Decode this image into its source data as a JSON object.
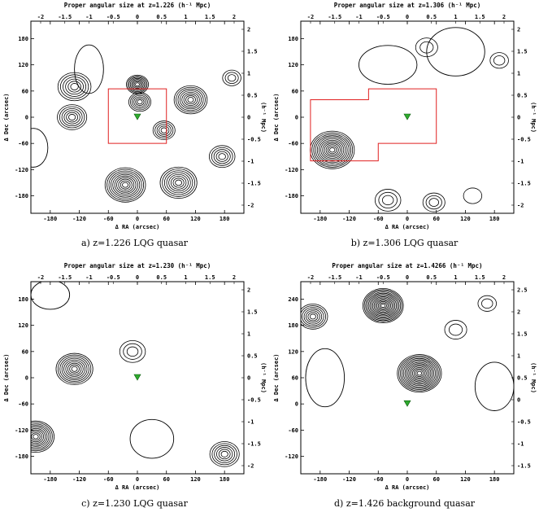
{
  "panels": [
    {
      "id": "a",
      "title": "Proper angular size at z=1.226 (h⁻¹ Mpc)",
      "caption": "a)   z=1.226 LQG quasar",
      "xlabel": "Δ RA (arcsec)",
      "ylabel": "Δ Dec (arcsec)",
      "rlabel": "(h⁻¹ Mpc)",
      "xticks": [
        -180,
        -120,
        -60,
        0,
        60,
        120,
        180
      ],
      "yticks": [
        180,
        120,
        60,
        0,
        -60,
        -120,
        -180
      ],
      "top_ticks": [
        "-2",
        "-1.5",
        "-1",
        "-0.5",
        "0",
        "0.5",
        "1",
        "1.5",
        "2"
      ],
      "right_ticks": [
        "2",
        "1.5",
        "1",
        "0.5",
        "0",
        "-0.5",
        "-1",
        "-1.5",
        "-2"
      ],
      "xlim": [
        -220,
        220
      ],
      "ylim": [
        -220,
        220
      ],
      "peaks": [
        {
          "x": -130,
          "y": 70,
          "s": 18,
          "n": 6
        },
        {
          "x": -135,
          "y": 0,
          "s": 16,
          "n": 6
        },
        {
          "x": 0,
          "y": 75,
          "s": 12,
          "n": 8
        },
        {
          "x": 5,
          "y": 35,
          "s": 12,
          "n": 6
        },
        {
          "x": 110,
          "y": 40,
          "s": 18,
          "n": 8
        },
        {
          "x": 55,
          "y": -30,
          "s": 12,
          "n": 5
        },
        {
          "x": -25,
          "y": -155,
          "s": 22,
          "n": 10
        },
        {
          "x": 85,
          "y": -150,
          "s": 20,
          "n": 8
        },
        {
          "x": 175,
          "y": -90,
          "s": 14,
          "n": 5
        },
        {
          "x": 195,
          "y": 90,
          "s": 10,
          "n": 3
        }
      ],
      "blobs": [
        {
          "x": -215,
          "y": -70,
          "rx": 30,
          "ry": 40
        },
        {
          "x": -100,
          "y": 110,
          "rx": 30,
          "ry": 50
        }
      ],
      "box": [
        [
          -60,
          65
        ],
        [
          60,
          65
        ],
        [
          60,
          -60
        ],
        [
          -60,
          -60
        ]
      ],
      "marker": {
        "x": 0,
        "y": 0
      }
    },
    {
      "id": "b",
      "title": "Proper angular size at z=1.306 (h⁻¹ Mpc)",
      "caption": "b)   z=1.306 LQG quasar",
      "xlabel": "Δ RA (arcsec)",
      "ylabel": "Δ Dec (arcsec)",
      "rlabel": "(h⁻¹ Mpc)",
      "xticks": [
        -180,
        -120,
        -60,
        0,
        60,
        120,
        180
      ],
      "yticks": [
        180,
        120,
        60,
        0,
        -60,
        -120,
        -180
      ],
      "top_ticks": [
        "-2",
        "-1.5",
        "-1",
        "-0.5",
        "0",
        "0.5",
        "1",
        "1.5",
        "2"
      ],
      "right_ticks": [
        "2",
        "1.5",
        "1",
        "0.5",
        "0",
        "-0.5",
        "-1",
        "-1.5",
        "-2"
      ],
      "xlim": [
        -220,
        220
      ],
      "ylim": [
        -220,
        220
      ],
      "peaks": [
        {
          "x": -155,
          "y": -75,
          "s": 24,
          "n": 12
        },
        {
          "x": 40,
          "y": 160,
          "s": 12,
          "n": 2
        },
        {
          "x": 190,
          "y": 130,
          "s": 10,
          "n": 2
        },
        {
          "x": 55,
          "y": -195,
          "s": 12,
          "n": 3
        },
        {
          "x": 135,
          "y": -180,
          "s": 10,
          "n": 1
        },
        {
          "x": -40,
          "y": -190,
          "s": 14,
          "n": 3
        }
      ],
      "blobs": [
        {
          "x": -40,
          "y": 120,
          "rx": 60,
          "ry": 40
        },
        {
          "x": 100,
          "y": 150,
          "rx": 60,
          "ry": 50
        }
      ],
      "box": [
        [
          -200,
          40
        ],
        [
          -80,
          40
        ],
        [
          -80,
          65
        ],
        [
          60,
          65
        ],
        [
          60,
          -60
        ],
        [
          -60,
          -60
        ],
        [
          -60,
          -100
        ],
        [
          -200,
          -100
        ]
      ],
      "marker": {
        "x": 0,
        "y": 0
      }
    },
    {
      "id": "c",
      "title": "Proper angular size at z=1.230 (h⁻¹ Mpc)",
      "caption": "c)   z=1.230 LQG quasar",
      "xlabel": "Δ RA (arcsec)",
      "ylabel": "Δ Dec (arcsec)",
      "rlabel": "(h⁻¹ Mpc)",
      "xticks": [
        -180,
        -120,
        -60,
        0,
        60,
        120,
        180
      ],
      "yticks": [
        180,
        120,
        60,
        0,
        -60,
        -120,
        -180
      ],
      "top_ticks": [
        "-2",
        "-1.5",
        "-1",
        "-0.5",
        "0",
        "0.5",
        "1",
        "1.5",
        "2"
      ],
      "right_ticks": [
        "2",
        "1.5",
        "1",
        "0.5",
        "0",
        "-0.5",
        "-1",
        "-1.5",
        "-2"
      ],
      "xlim": [
        -220,
        220
      ],
      "ylim": [
        -220,
        220
      ],
      "peaks": [
        {
          "x": -130,
          "y": 20,
          "s": 20,
          "n": 9
        },
        {
          "x": -210,
          "y": -135,
          "s": 20,
          "n": 10
        },
        {
          "x": 180,
          "y": -175,
          "s": 16,
          "n": 6
        },
        {
          "x": -10,
          "y": 60,
          "s": 14,
          "n": 3
        }
      ],
      "blobs": [
        {
          "x": 30,
          "y": -140,
          "rx": 45,
          "ry": 40
        },
        {
          "x": -180,
          "y": 190,
          "rx": 40,
          "ry": 30
        }
      ],
      "box": [],
      "marker": {
        "x": 0,
        "y": 0
      }
    },
    {
      "id": "d",
      "title": "Proper angular size at z=1.4266 (h⁻¹ Mpc)",
      "caption": "d)   z=1.426 background quasar",
      "xlabel": "Δ RA (arcsec)",
      "ylabel": "Δ Dec (arcsec)",
      "rlabel": "(h⁻¹ Mpc)",
      "xticks": [
        -180,
        -120,
        -60,
        0,
        60,
        120,
        180
      ],
      "yticks": [
        240,
        180,
        120,
        60,
        0,
        -60,
        -120
      ],
      "top_ticks": [
        "-2",
        "-1.5",
        "-1",
        "-0.5",
        "0",
        "0.5",
        "1",
        "1.5",
        "2"
      ],
      "right_ticks": [
        "2.5",
        "2",
        "1.5",
        "1",
        "0.5",
        "0",
        "-0.5",
        "-1",
        "-1.5"
      ],
      "xlim": [
        -220,
        220
      ],
      "ylim": [
        -160,
        280
      ],
      "peaks": [
        {
          "x": -50,
          "y": 225,
          "s": 22,
          "n": 14
        },
        {
          "x": 25,
          "y": 70,
          "s": 24,
          "n": 14
        },
        {
          "x": -195,
          "y": 200,
          "s": 16,
          "n": 7
        },
        {
          "x": 165,
          "y": 230,
          "s": 10,
          "n": 2
        },
        {
          "x": 100,
          "y": 170,
          "s": 12,
          "n": 2
        }
      ],
      "blobs": [
        {
          "x": -170,
          "y": 60,
          "rx": 40,
          "ry": 60
        },
        {
          "x": 180,
          "y": 40,
          "rx": 40,
          "ry": 50
        }
      ],
      "box": [],
      "marker": {
        "x": 0,
        "y": 0
      }
    }
  ]
}
